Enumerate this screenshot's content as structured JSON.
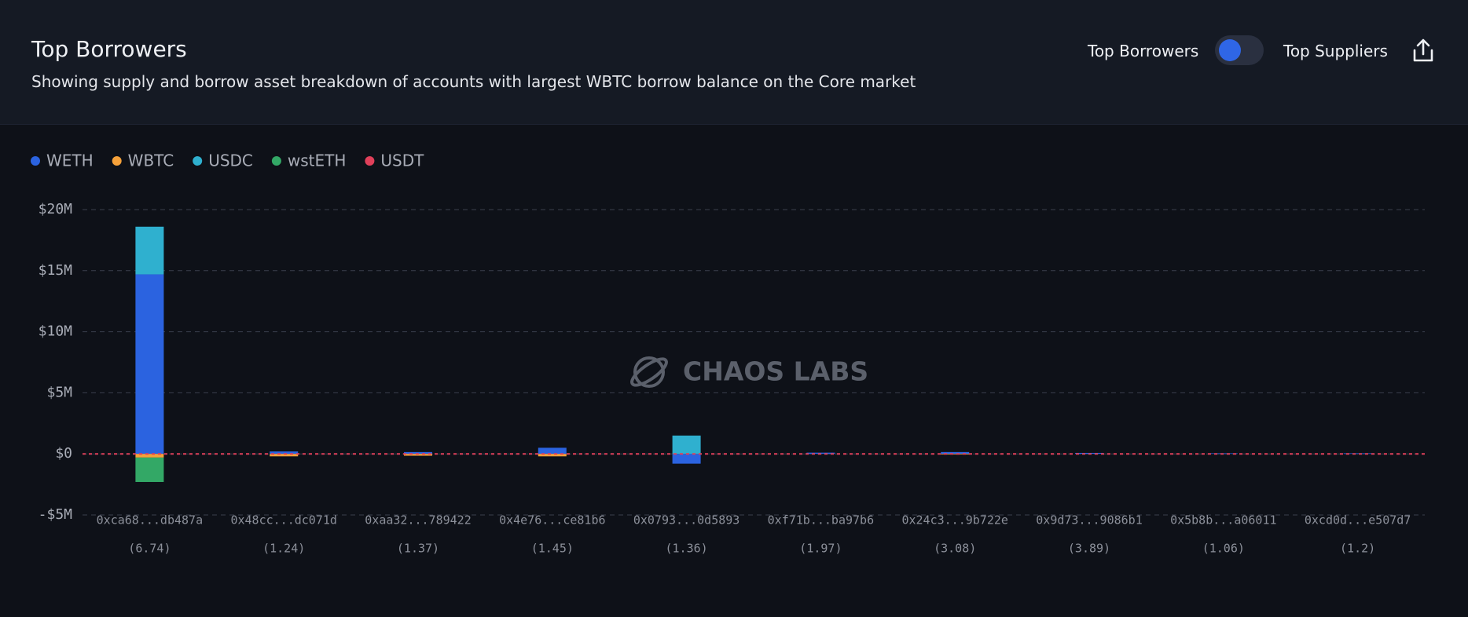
{
  "header": {
    "title": "Top Borrowers",
    "subtitle": "Showing supply and borrow asset breakdown of accounts with largest WBTC borrow balance on the Core market",
    "toggle": {
      "left_label": "Top Borrowers",
      "right_label": "Top Suppliers"
    }
  },
  "chart_data": {
    "type": "stacked_bar",
    "watermark": "CHAOS LABS",
    "categories": [
      "0xca68...db487a",
      "0x48cc...dc071d",
      "0xaa32...789422",
      "0x4e76...ce81b6",
      "0x0793...0d5893",
      "0xf71b...ba97b6",
      "0x24c3...9b722e",
      "0x9d73...9086b1",
      "0x5b8b...a06011",
      "0xcd0d...e507d7"
    ],
    "category_notes": [
      "(6.74)",
      "(1.24)",
      "(1.37)",
      "(1.45)",
      "(1.36)",
      "(1.97)",
      "(3.08)",
      "(3.89)",
      "(1.06)",
      "(1.2)"
    ],
    "series": [
      {
        "name": "WETH",
        "color": "#2b63e0",
        "values": [
          14.7,
          0.2,
          0.15,
          0.5,
          -0.8,
          0.1,
          0.15,
          0.08,
          0.05,
          0.05
        ]
      },
      {
        "name": "WBTC",
        "color": "#f5a13a",
        "values": [
          -0.3,
          -0.2,
          -0.15,
          -0.2,
          0,
          0,
          -0.05,
          0,
          0,
          0
        ]
      },
      {
        "name": "USDC",
        "color": "#2fb0cf",
        "values": [
          3.9,
          0,
          0,
          0,
          1.5,
          0,
          0,
          0,
          0,
          0
        ]
      },
      {
        "name": "wstETH",
        "color": "#33a866",
        "values": [
          -2.0,
          0,
          0,
          0,
          0,
          0,
          0,
          0,
          0,
          0
        ]
      },
      {
        "name": "USDT",
        "color": "#e0405a",
        "values": [
          0,
          0,
          0,
          0,
          0,
          0,
          0,
          0,
          0,
          0
        ]
      }
    ],
    "ylim": [
      -5,
      20
    ],
    "yticks": [
      {
        "value": -5,
        "label": "-$5M"
      },
      {
        "value": 0,
        "label": "$0"
      },
      {
        "value": 5,
        "label": "$5M"
      },
      {
        "value": 10,
        "label": "$10M"
      },
      {
        "value": 15,
        "label": "$15M"
      },
      {
        "value": 20,
        "label": "$20M"
      }
    ],
    "grid": true
  }
}
